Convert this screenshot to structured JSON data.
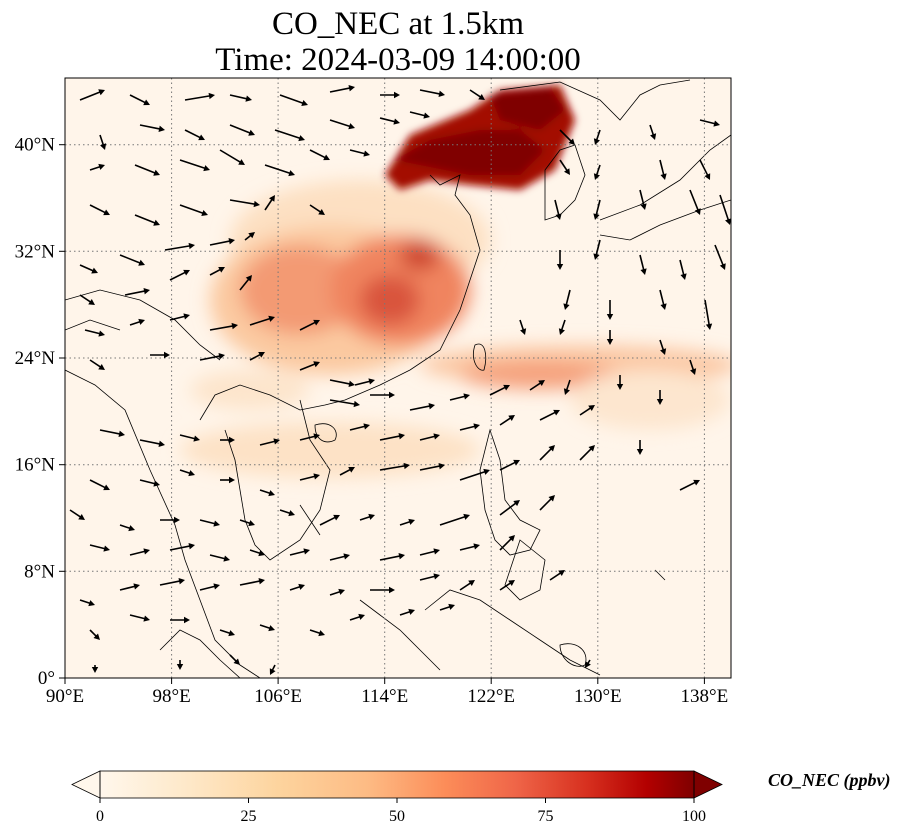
{
  "figure": {
    "title_line1": "CO_NEC at 1.5km",
    "title_line2": "Time: 2024-03-09 14:00:00"
  },
  "map": {
    "projection": "PlateCarree",
    "lon_range": [
      90,
      140
    ],
    "lat_range": [
      0,
      45
    ],
    "x_ticks": [
      "90°E",
      "98°E",
      "106°E",
      "114°E",
      "122°E",
      "130°E",
      "138°E"
    ],
    "y_ticks": [
      "0°",
      "8°N",
      "16°N",
      "24°N",
      "32°N",
      "40°N"
    ],
    "gridlines": true,
    "coastlines": true,
    "wind_vectors": true
  },
  "colorbar": {
    "label": "CO_NEC (ppbv)",
    "ticks": [
      "0",
      "25",
      "50",
      "75",
      "100"
    ],
    "range": [
      0,
      100
    ],
    "extend": "both",
    "colormap": "OrRd",
    "colors": [
      "#fff7ec",
      "#fee8c8",
      "#fdd49e",
      "#fdbb84",
      "#fc8d59",
      "#ef6548",
      "#d7301f",
      "#b30000",
      "#7f0000"
    ]
  }
}
